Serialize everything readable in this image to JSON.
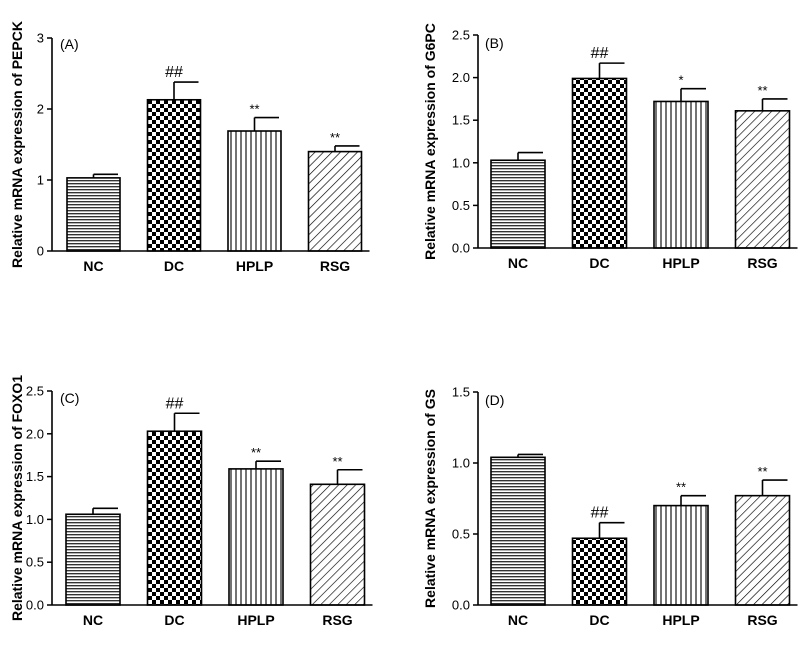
{
  "chart_data": [
    {
      "type": "bar",
      "panel": "(A)",
      "ylabel": "Relative mRNA expression of PEPCK",
      "categories": [
        "NC",
        "DC",
        "HPLP",
        "RSG"
      ],
      "values": [
        1.03,
        2.13,
        1.69,
        1.4
      ],
      "errors": [
        0.05,
        0.25,
        0.19,
        0.08
      ],
      "significance": [
        "",
        "##",
        "**",
        "**"
      ],
      "ylim": [
        0,
        3
      ],
      "yticks": [
        0,
        1,
        2,
        3
      ],
      "ytick_labels": [
        "0",
        "1",
        "2",
        "3"
      ]
    },
    {
      "type": "bar",
      "panel": "(B)",
      "ylabel": "Relative mRNA expression of  G6PC",
      "categories": [
        "NC",
        "DC",
        "HPLP",
        "RSG"
      ],
      "values": [
        1.03,
        1.99,
        1.72,
        1.61
      ],
      "errors": [
        0.09,
        0.18,
        0.15,
        0.14
      ],
      "significance": [
        "",
        "##",
        "*",
        "**"
      ],
      "ylim": [
        0,
        2.5
      ],
      "yticks": [
        0,
        0.5,
        1,
        1.5,
        2,
        2.5
      ],
      "ytick_labels": [
        "0.0",
        "0.5",
        "1.0",
        "1.5",
        "2.0",
        "2.5"
      ]
    },
    {
      "type": "bar",
      "panel": "(C)",
      "ylabel": "Relative mRNA expression of  FOXO1",
      "categories": [
        "NC",
        "DC",
        "HPLP",
        "RSG"
      ],
      "values": [
        1.06,
        2.03,
        1.59,
        1.41
      ],
      "errors": [
        0.07,
        0.21,
        0.09,
        0.17
      ],
      "significance": [
        "",
        "##",
        "**",
        "**"
      ],
      "ylim": [
        0,
        2.5
      ],
      "yticks": [
        0,
        0.5,
        1,
        1.5,
        2,
        2.5
      ],
      "ytick_labels": [
        "0.0",
        "0.5",
        "1.0",
        "1.5",
        "2.0",
        "2.5"
      ]
    },
    {
      "type": "bar",
      "panel": "(D)",
      "ylabel": "Relative mRNA expression of GS",
      "categories": [
        "NC",
        "DC",
        "HPLP",
        "RSG"
      ],
      "values": [
        1.04,
        0.47,
        0.7,
        0.77
      ],
      "errors": [
        0.02,
        0.11,
        0.07,
        0.11
      ],
      "significance": [
        "",
        "##",
        "**",
        "**"
      ],
      "ylim": [
        0,
        1.5
      ],
      "yticks": [
        0,
        0.5,
        1,
        1.5
      ],
      "ytick_labels": [
        "0.0",
        "0.5",
        "1.0",
        "1.5"
      ]
    }
  ],
  "patterns": [
    "horizontal-lines",
    "checkerboard",
    "vertical-lines",
    "diagonal-lines"
  ]
}
